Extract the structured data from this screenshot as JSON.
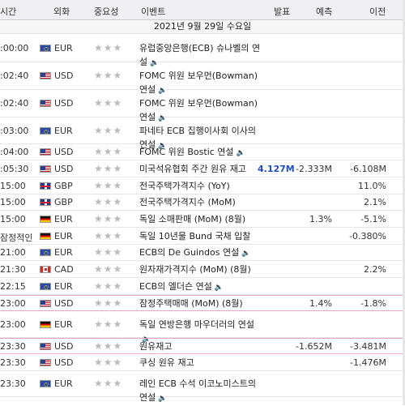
{
  "header": {
    "time": "시간",
    "currency": "외화",
    "importance": "중요성",
    "event": "이벤트",
    "actual": "발표",
    "forecast": "예측",
    "previous": "이전"
  },
  "date_label": "2021년 9월 29일 수요일",
  "speaker_icon": "speaker-icon",
  "stars": "★★★",
  "rows": [
    {
      "time": ":00:00",
      "flag": "eu",
      "currency": "EUR",
      "event": "유럽중앙은행(ECB) 슈나벨의 연설",
      "actual": "",
      "forecast": "",
      "previous": "",
      "speaker": true
    },
    {
      "time": ":02:40",
      "flag": "us",
      "currency": "USD",
      "event": "FOMC 위원 보우먼(Bowman) 연설",
      "actual": "",
      "forecast": "",
      "previous": "",
      "speaker": true
    },
    {
      "time": ":02:40",
      "flag": "us",
      "currency": "USD",
      "event": "FOMC 위원 보우먼(Bowman) 연설",
      "actual": "",
      "forecast": "",
      "previous": "",
      "speaker": true
    },
    {
      "time": ":03:00",
      "flag": "eu",
      "currency": "EUR",
      "event": "파네타 ECB 집행이사회 이사의 연설",
      "actual": "",
      "forecast": "",
      "previous": "",
      "speaker": true
    },
    {
      "time": ":04:00",
      "flag": "us",
      "currency": "USD",
      "event": "FOMC 위원 Bostic 연설",
      "actual": "",
      "forecast": "",
      "previous": "",
      "speaker": true
    },
    {
      "time": ":05:30",
      "flag": "us",
      "currency": "USD",
      "event": "미국석유협회 주간 원유 재고",
      "actual": "4.127M",
      "forecast": "-2.333M",
      "previous": "-6.108M",
      "speaker": false
    },
    {
      "time": "15:00",
      "flag": "gb",
      "currency": "GBP",
      "event": "전국주택가격지수 (YoY)",
      "actual": "",
      "forecast": "",
      "previous": "11.0%",
      "speaker": false
    },
    {
      "time": "15:00",
      "flag": "gb",
      "currency": "GBP",
      "event": "전국주택가격지수 (MoM)",
      "actual": "",
      "forecast": "",
      "previous": "2.1%",
      "speaker": false
    },
    {
      "time": "15:00",
      "flag": "de",
      "currency": "EUR",
      "event": "독일 소매판매 (MoM) (8월)",
      "actual": "",
      "forecast": "1.3%",
      "previous": "-5.1%",
      "speaker": false
    },
    {
      "time": "잠정적인",
      "flag": "de",
      "currency": "EUR",
      "event": "독일 10년물 Bund 국채 입찰",
      "actual": "",
      "forecast": "",
      "previous": "-0.380%",
      "speaker": false
    },
    {
      "time": "21:00",
      "flag": "eu",
      "currency": "EUR",
      "event": "ECB의 De Guindos 연설",
      "actual": "",
      "forecast": "",
      "previous": "",
      "speaker": true
    },
    {
      "time": "21:30",
      "flag": "ca",
      "currency": "CAD",
      "event": "원자재가격지수 (MoM) (8월)",
      "actual": "",
      "forecast": "",
      "previous": "2.2%",
      "speaker": false
    },
    {
      "time": "22:15",
      "flag": "eu",
      "currency": "EUR",
      "event": "ECB의 엘더슨 연설",
      "actual": "",
      "forecast": "",
      "previous": "",
      "speaker": true
    },
    {
      "time": "23:00",
      "flag": "us",
      "currency": "USD",
      "event": "잠정주택매매 (MoM) (8월)",
      "actual": "",
      "forecast": "1.4%",
      "previous": "-1.8%",
      "speaker": false,
      "highlight": true
    },
    {
      "time": "23:00",
      "flag": "de",
      "currency": "EUR",
      "event": "독일 연방은행 마우더러의 연설",
      "actual": "",
      "forecast": "",
      "previous": "",
      "speaker": true
    },
    {
      "time": "23:30",
      "flag": "us",
      "currency": "USD",
      "event": "원유재고",
      "actual": "",
      "forecast": "-1.652M",
      "previous": "-3.481M",
      "speaker": false,
      "highlight": true
    },
    {
      "time": "23:30",
      "flag": "us",
      "currency": "USD",
      "event": "쿠싱 원유 재고",
      "actual": "",
      "forecast": "",
      "previous": "-1.476M",
      "speaker": false
    },
    {
      "time": "23:30",
      "flag": "eu",
      "currency": "EUR",
      "event": "레인 ECB 수석 이코노미스트의 연설",
      "actual": "",
      "forecast": "",
      "previous": "",
      "speaker": true
    }
  ]
}
